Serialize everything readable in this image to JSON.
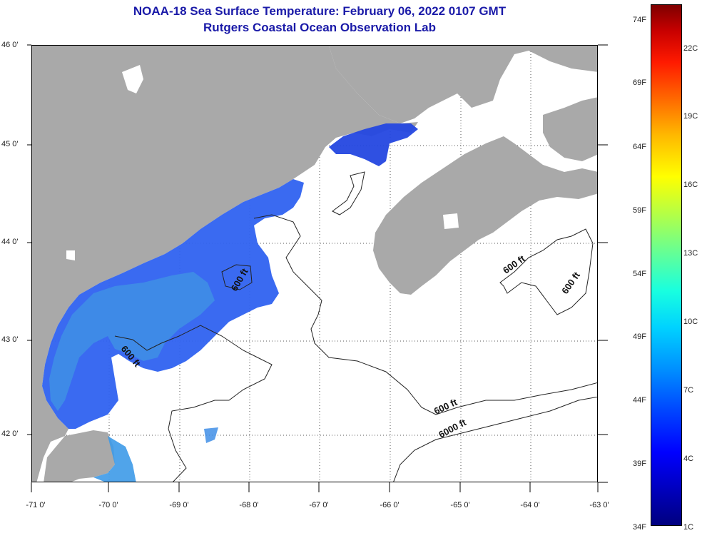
{
  "title": "NOAA-18 Sea Surface Temperature:  February 06, 2022 0107 GMT",
  "subtitle": "Rutgers Coastal Ocean Observation Lab",
  "latitude_labels": [
    "46 0'",
    "45 0'",
    "44 0'",
    "43 0'",
    "42 0'"
  ],
  "longitude_labels": [
    "-71 0'",
    "-70 0'",
    "-69 0'",
    "-68 0'",
    "-67 0'",
    "-66 0'",
    "-65 0'",
    "-64 0'",
    "-63 0'"
  ],
  "contour_labels": [
    "600 ft",
    "600 ft",
    "600 ft",
    "600 ft",
    "600 ft",
    "6000 ft"
  ],
  "colorbar": {
    "fahrenheit": [
      "74F",
      "69F",
      "64F",
      "59F",
      "54F",
      "49F",
      "44F",
      "39F",
      "34F"
    ],
    "celsius": [
      "22C",
      "19C",
      "16C",
      "13C",
      "10C",
      "7C",
      "4C",
      "1C"
    ]
  },
  "colors": {
    "land": "#a9a9a9",
    "title": "#1a1aa8",
    "water_cold": "#1e48e8",
    "water_cool": "#3a98e8"
  }
}
